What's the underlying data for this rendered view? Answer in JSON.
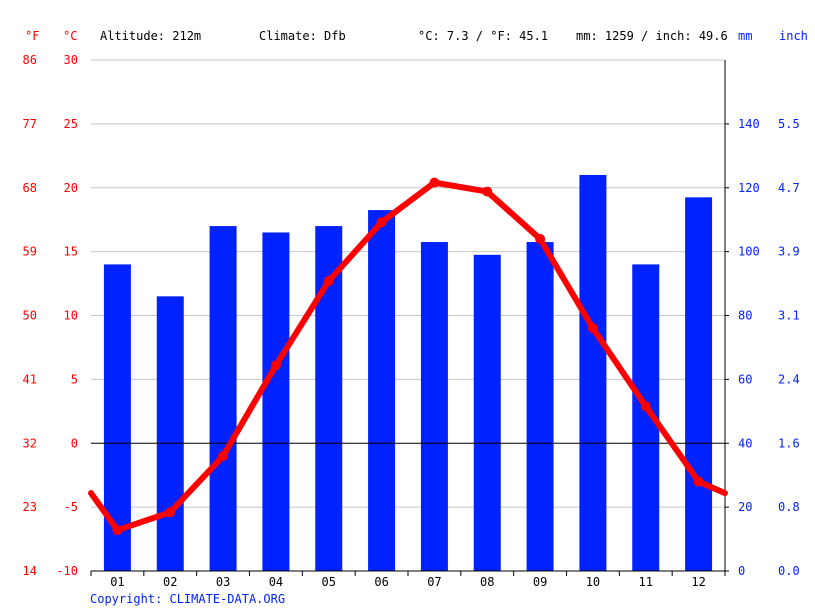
{
  "header": {
    "unit_f": "°F",
    "unit_c": "°C",
    "altitude": "Altitude: 212m",
    "climate": "Climate: Dfb",
    "temp_avg": "°C: 7.3 / °F: 45.1",
    "precip_total": "mm: 1259 / inch: 49.6",
    "unit_mm": "mm",
    "unit_inch": "inch"
  },
  "footer": {
    "copyright": "Copyright: CLIMATE-DATA.ORG"
  },
  "colors": {
    "temp": "#ff0000",
    "precip": "#0022ff",
    "grid": "#c8c8c8",
    "text": "#000000"
  },
  "chart_data": {
    "type": "bar",
    "categories": [
      "01",
      "02",
      "03",
      "04",
      "05",
      "06",
      "07",
      "08",
      "09",
      "10",
      "11",
      "12"
    ],
    "series": [
      {
        "type": "bar",
        "axis": "precip",
        "values": [
          96,
          86,
          108,
          106,
          108,
          113,
          103,
          99,
          103,
          124,
          96,
          117
        ]
      },
      {
        "type": "line",
        "axis": "temp",
        "values": [
          -6.8,
          -5.4,
          -1.0,
          6.1,
          12.7,
          17.3,
          20.4,
          19.7,
          16.0,
          9.0,
          2.9,
          -3.0
        ]
      }
    ],
    "temp_axis": {
      "ylim": [
        -10,
        30
      ],
      "ticks_c": [
        "-10",
        "-5",
        "0",
        "5",
        "10",
        "15",
        "20",
        "25",
        "30"
      ],
      "ticks_f": [
        "14",
        "23",
        "32",
        "41",
        "50",
        "59",
        "68",
        "77",
        "86"
      ]
    },
    "precip_axis": {
      "ylim": [
        0,
        160
      ],
      "ticks_mm": [
        "0",
        "20",
        "40",
        "60",
        "80",
        "100",
        "120",
        "140"
      ],
      "ticks_inch": [
        "0.0",
        "0.8",
        "1.6",
        "2.4",
        "3.1",
        "3.9",
        "4.7",
        "5.5"
      ]
    },
    "grid": true
  }
}
